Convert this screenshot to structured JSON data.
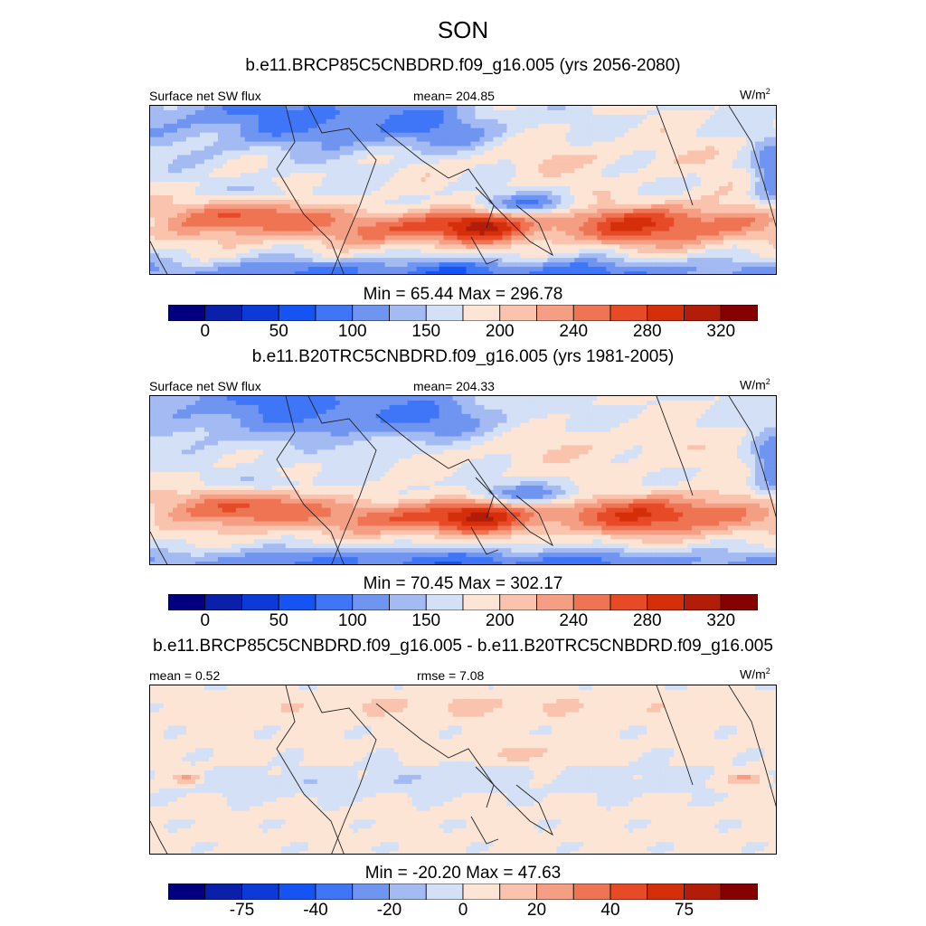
{
  "title": "SON",
  "panels": [
    {
      "id": "rcp85",
      "case_title": "b.e11.BRCP85C5CNBDRD.f09_g16.005 (yrs 2056-2080)",
      "left_label": "Surface net SW flux",
      "center_label": "mean= 204.85",
      "units": "W/m",
      "units_sup": "2",
      "minmax": "Min =  65.44 Max = 296.78",
      "colorbar": {
        "colors": [
          "#00007f",
          "#0a1faa",
          "#0b3ad6",
          "#1553f2",
          "#3f76f7",
          "#6f95f1",
          "#a3baf2",
          "#d3e0f5",
          "#fde5d6",
          "#f9c3ad",
          "#f49e84",
          "#ee7453",
          "#e64a26",
          "#d52e0a",
          "#b11d08",
          "#840001"
        ],
        "labels": [
          "0",
          "50",
          "100",
          "150",
          "200",
          "240",
          "280",
          "320"
        ]
      },
      "field": "abs"
    },
    {
      "id": "b20tr",
      "case_title": "b.e11.B20TRC5CNBDRD.f09_g16.005 (yrs 1981-2005)",
      "left_label": "Surface net SW flux",
      "center_label": "mean= 204.33",
      "units": "W/m",
      "units_sup": "2",
      "minmax": "Min =  70.45 Max = 302.17",
      "colorbar": {
        "colors": [
          "#00007f",
          "#0a1faa",
          "#0b3ad6",
          "#1553f2",
          "#3f76f7",
          "#6f95f1",
          "#a3baf2",
          "#d3e0f5",
          "#fde5d6",
          "#f9c3ad",
          "#f49e84",
          "#ee7453",
          "#e64a26",
          "#d52e0a",
          "#b11d08",
          "#840001"
        ],
        "labels": [
          "0",
          "50",
          "100",
          "150",
          "200",
          "240",
          "280",
          "320"
        ]
      },
      "field": "abs"
    },
    {
      "id": "diff",
      "case_title": "b.e11.BRCP85C5CNBDRD.f09_g16.005 - b.e11.B20TRC5CNBDRD.f09_g16.005",
      "left_label": "mean =   0.52",
      "center_label": "rmse =   7.08",
      "units": "W/m",
      "units_sup": "2",
      "minmax": "Min = -20.20 Max =  47.63",
      "colorbar": {
        "colors": [
          "#00007f",
          "#0a1faa",
          "#0b3ad6",
          "#1553f2",
          "#3f76f7",
          "#6f95f1",
          "#a3baf2",
          "#d3e0f5",
          "#fde5d6",
          "#f9c3ad",
          "#f49e84",
          "#ee7453",
          "#e64a26",
          "#d52e0a",
          "#b11d08",
          "#840001"
        ],
        "labels": [
          "-75",
          "-40",
          "-20",
          "0",
          "20",
          "40",
          "75"
        ]
      },
      "field": "diff"
    }
  ]
}
